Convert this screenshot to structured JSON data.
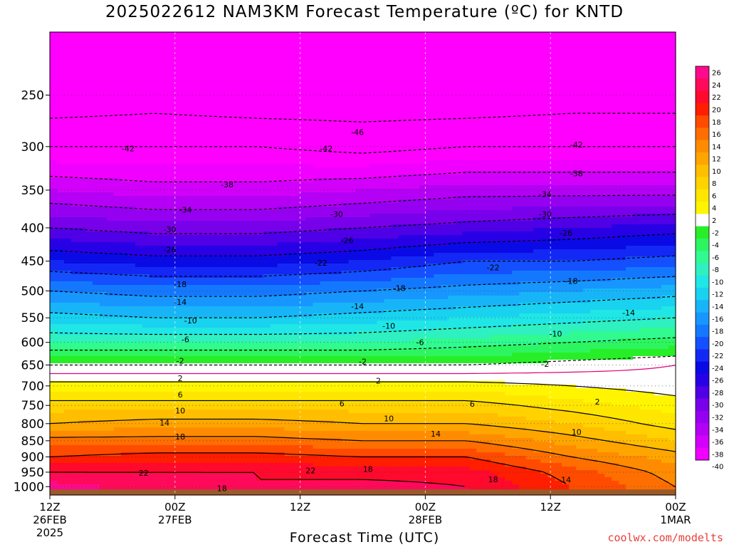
{
  "chart_data": {
    "type": "heatmap",
    "title": "2025022612 NAM3KM Forecast Temperature (ºC) for KNTD",
    "xlabel": "Forecast Time (UTC)",
    "ylabel": "",
    "credit": "coolwx.com/modelts",
    "y_axis": {
      "scale": "log-pressure",
      "reversed": true,
      "range": [
        1030,
        200
      ],
      "ticks": [
        250,
        300,
        350,
        400,
        450,
        500,
        550,
        600,
        650,
        700,
        750,
        800,
        850,
        900,
        950,
        1000
      ]
    },
    "x_axis": {
      "range_hours": [
        0,
        60
      ],
      "ticks": [
        {
          "hour": 0,
          "lines": [
            "12Z",
            "26FEB",
            "2025"
          ]
        },
        {
          "hour": 12,
          "lines": [
            "00Z",
            "27FEB"
          ]
        },
        {
          "hour": 24,
          "lines": [
            "12Z"
          ]
        },
        {
          "hour": 36,
          "lines": [
            "00Z",
            "28FEB"
          ]
        },
        {
          "hour": 48,
          "lines": [
            "12Z"
          ]
        },
        {
          "hour": 60,
          "lines": [
            "00Z",
            "1MAR"
          ]
        }
      ]
    },
    "colorbar": {
      "labels": [
        "26",
        "24",
        "22",
        "20",
        "18",
        "16",
        "14",
        "12",
        "10",
        "8",
        "6",
        "4",
        "2",
        "-2",
        "-4",
        "-6",
        "-8",
        "-10",
        "-12",
        "-14",
        "-16",
        "-18",
        "-20",
        "-22",
        "-24",
        "-26",
        "-28",
        "-30",
        "-32",
        "-34",
        "-36",
        "-38",
        "-40"
      ],
      "colors": [
        "#ff0a8c",
        "#ff0a5a",
        "#ff0a2d",
        "#ff1e00",
        "#ff4b00",
        "#ff6e00",
        "#ff8c00",
        "#ffa500",
        "#ffbe00",
        "#ffd200",
        "#ffe600",
        "#fff500",
        "#ffffff",
        "#28ee28",
        "#2df560",
        "#30fa90",
        "#2ff0c0",
        "#20e6e6",
        "#18d2f0",
        "#18b4f8",
        "#1896ff",
        "#1478ff",
        "#1450ff",
        "#1428f5",
        "#0a0ae6",
        "#2800e6",
        "#5000e6",
        "#7800eb",
        "#9600f0",
        "#b400f5",
        "#d200fa",
        "#f000ff"
      ]
    },
    "pressure_profiles": [
      {
        "pressure": 200,
        "values": [
          -54,
          -54,
          -54,
          -54,
          -54,
          -54,
          -54
        ]
      },
      {
        "pressure": 250,
        "values": [
          -49,
          -48,
          -49,
          -49,
          -49,
          -48,
          -48
        ]
      },
      {
        "pressure": 300,
        "values": [
          -42,
          -42,
          -42,
          -43,
          -42,
          -42,
          -42
        ]
      },
      {
        "pressure": 350,
        "values": [
          -36,
          -37,
          -37,
          -36,
          -35,
          -35,
          -35
        ]
      },
      {
        "pressure": 400,
        "values": [
          -30,
          -31,
          -31,
          -30,
          -29,
          -28,
          -27
        ]
      },
      {
        "pressure": 450,
        "values": [
          -24,
          -25,
          -25,
          -24,
          -22,
          -22,
          -21
        ]
      },
      {
        "pressure": 500,
        "values": [
          -18,
          -19,
          -19,
          -18,
          -17,
          -16,
          -15
        ]
      },
      {
        "pressure": 550,
        "values": [
          -13,
          -14,
          -14,
          -13,
          -12,
          -11,
          -10
        ]
      },
      {
        "pressure": 600,
        "values": [
          -8,
          -8,
          -8,
          -8,
          -7,
          -6,
          -5
        ]
      },
      {
        "pressure": 650,
        "values": [
          -2,
          -2,
          -2,
          -2,
          -2,
          -1,
          0
        ]
      },
      {
        "pressure": 700,
        "values": [
          3,
          3,
          3,
          3,
          3,
          2,
          1
        ]
      },
      {
        "pressure": 750,
        "values": [
          7,
          7,
          7,
          7,
          7,
          5,
          3
        ]
      },
      {
        "pressure": 800,
        "values": [
          10,
          11,
          11,
          10,
          10,
          8,
          5
        ]
      },
      {
        "pressure": 850,
        "values": [
          15,
          15,
          15,
          14,
          14,
          11,
          8
        ]
      },
      {
        "pressure": 900,
        "values": [
          18,
          19,
          19,
          18,
          18,
          14,
          11
        ]
      },
      {
        "pressure": 950,
        "values": [
          22,
          22,
          22,
          21,
          21,
          17,
          13
        ]
      },
      {
        "pressure": 1000,
        "values": [
          25,
          23,
          22,
          23,
          22,
          18,
          14
        ]
      }
    ],
    "contour_labels": [
      {
        "text": "-46",
        "hour": 29.5,
        "pressure": 285
      },
      {
        "text": "-42",
        "hour": 7.5,
        "pressure": 302
      },
      {
        "text": "-42",
        "hour": 26.5,
        "pressure": 302
      },
      {
        "text": "-42",
        "hour": 50.5,
        "pressure": 298
      },
      {
        "text": "-38",
        "hour": 17.0,
        "pressure": 343
      },
      {
        "text": "-38",
        "hour": 50.5,
        "pressure": 330
      },
      {
        "text": "-34",
        "hour": 13.0,
        "pressure": 375
      },
      {
        "text": "-34",
        "hour": 47.5,
        "pressure": 355
      },
      {
        "text": "-30",
        "hour": 11.5,
        "pressure": 402
      },
      {
        "text": "-30",
        "hour": 27.5,
        "pressure": 381
      },
      {
        "text": "-30",
        "hour": 47.5,
        "pressure": 381
      },
      {
        "text": "-26",
        "hour": 11.5,
        "pressure": 432
      },
      {
        "text": "-26",
        "hour": 28.5,
        "pressure": 418
      },
      {
        "text": "-26",
        "hour": 49.5,
        "pressure": 407
      },
      {
        "text": "-22",
        "hour": 26.0,
        "pressure": 453
      },
      {
        "text": "-22",
        "hour": 42.5,
        "pressure": 460
      },
      {
        "text": "-18",
        "hour": 12.5,
        "pressure": 488
      },
      {
        "text": "-18",
        "hour": 33.5,
        "pressure": 495
      },
      {
        "text": "-18",
        "hour": 50.0,
        "pressure": 483
      },
      {
        "text": "-14",
        "hour": 12.5,
        "pressure": 520
      },
      {
        "text": "-14",
        "hour": 29.5,
        "pressure": 528
      },
      {
        "text": "-14",
        "hour": 55.5,
        "pressure": 540
      },
      {
        "text": "-10",
        "hour": 13.5,
        "pressure": 555
      },
      {
        "text": "-10",
        "hour": 32.5,
        "pressure": 566
      },
      {
        "text": "-10",
        "hour": 48.5,
        "pressure": 582
      },
      {
        "text": "-6",
        "hour": 13.0,
        "pressure": 594
      },
      {
        "text": "-6",
        "hour": 35.5,
        "pressure": 600
      },
      {
        "text": "-2",
        "hour": 12.5,
        "pressure": 640
      },
      {
        "text": "-2",
        "hour": 30.0,
        "pressure": 642
      },
      {
        "text": "-2",
        "hour": 47.5,
        "pressure": 648
      },
      {
        "text": "2",
        "hour": 12.5,
        "pressure": 681
      },
      {
        "text": "2",
        "hour": 31.5,
        "pressure": 687
      },
      {
        "text": "2",
        "hour": 52.5,
        "pressure": 740
      },
      {
        "text": "6",
        "hour": 12.5,
        "pressure": 722
      },
      {
        "text": "6",
        "hour": 28.0,
        "pressure": 745
      },
      {
        "text": "6",
        "hour": 40.5,
        "pressure": 746
      },
      {
        "text": "10",
        "hour": 12.5,
        "pressure": 764
      },
      {
        "text": "10",
        "hour": 32.5,
        "pressure": 785
      },
      {
        "text": "10",
        "hour": 50.5,
        "pressure": 824
      },
      {
        "text": "14",
        "hour": 11.0,
        "pressure": 797
      },
      {
        "text": "14",
        "hour": 37.0,
        "pressure": 829
      },
      {
        "text": "14",
        "hour": 49.5,
        "pressure": 976
      },
      {
        "text": "18",
        "hour": 12.5,
        "pressure": 838
      },
      {
        "text": "18",
        "hour": 30.5,
        "pressure": 940
      },
      {
        "text": "18",
        "hour": 16.5,
        "pressure": 1006
      },
      {
        "text": "18",
        "hour": 42.5,
        "pressure": 974
      },
      {
        "text": "22",
        "hour": 9.0,
        "pressure": 953
      },
      {
        "text": "22",
        "hour": 25.0,
        "pressure": 944
      }
    ]
  }
}
